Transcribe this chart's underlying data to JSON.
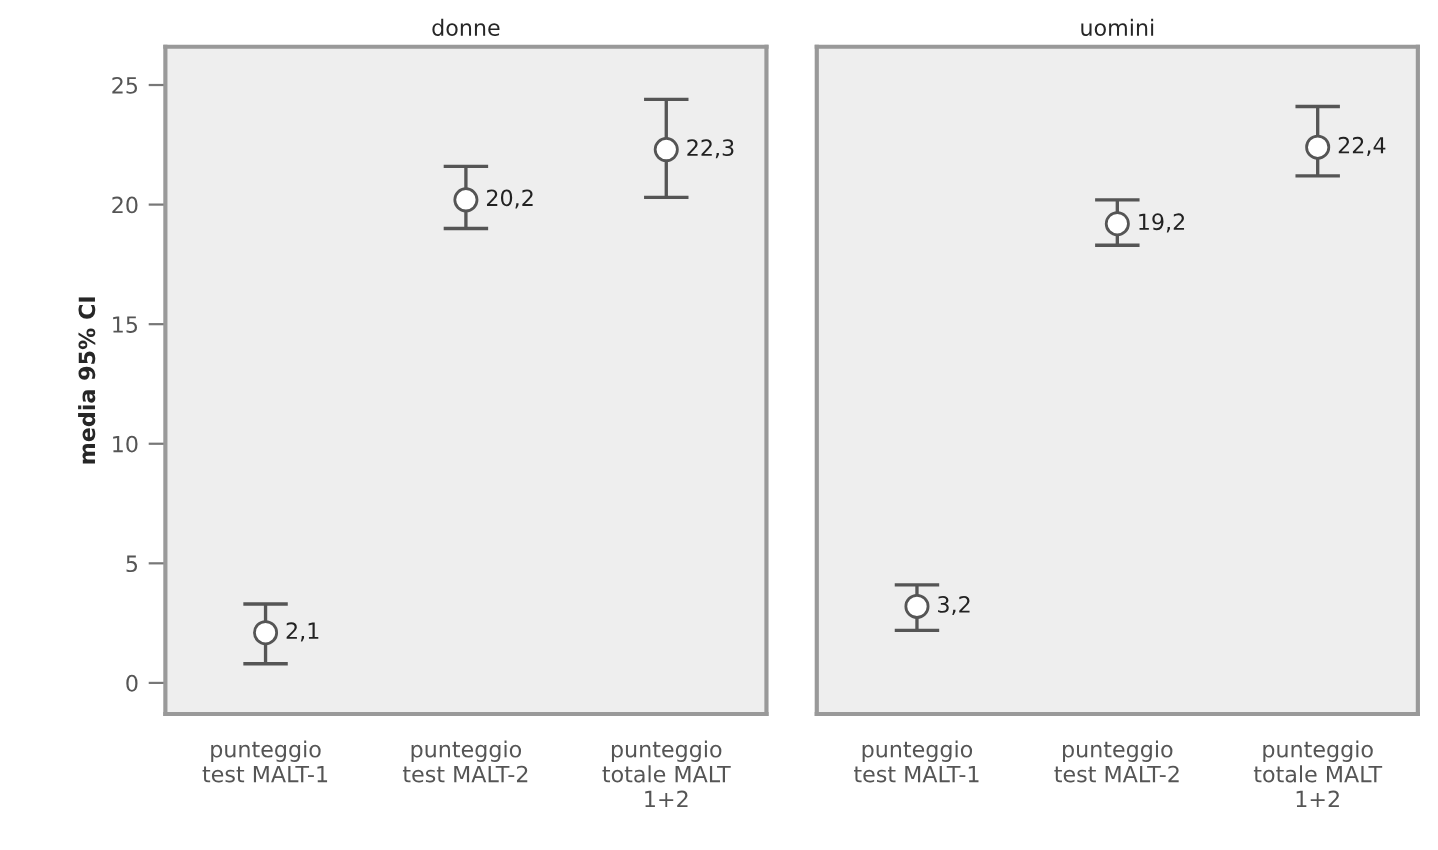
{
  "chart_data": [
    {
      "type": "scatter",
      "title": "donne",
      "ylabel": "media 95% CI",
      "categories": [
        "punteggio test MALT-1",
        "punteggio test MALT-2",
        "punteggio totale MALT 1+2"
      ],
      "series": [
        {
          "color": "#555555",
          "values": [
            2.1,
            20.2,
            22.3
          ],
          "errors": [
            [
              0.8,
              3.3
            ],
            [
              19.0,
              21.6
            ],
            [
              20.3,
              24.4
            ]
          ],
          "value_labels": [
            "2,1",
            "20,2",
            "22,3"
          ]
        }
      ],
      "ylim": [
        -1.3,
        26.6
      ],
      "yticks": [
        0,
        5,
        10,
        15,
        20,
        25
      ],
      "marker": "circle",
      "grid": false,
      "legend": false
    },
    {
      "type": "scatter",
      "title": "uomini",
      "categories": [
        "punteggio test MALT-1",
        "punteggio test MALT-2",
        "punteggio totale MALT 1+2"
      ],
      "series": [
        {
          "color": "#555555",
          "values": [
            3.2,
            19.2,
            22.4
          ],
          "errors": [
            [
              2.2,
              4.1
            ],
            [
              18.3,
              20.2
            ],
            [
              21.2,
              24.1
            ]
          ],
          "value_labels": [
            "3,2",
            "19,2",
            "22,4"
          ]
        }
      ],
      "ylim": [
        -1.3,
        26.6
      ],
      "yticks": [
        0,
        5,
        10,
        15,
        20,
        25
      ],
      "tick_labels": "x",
      "marker": "circle",
      "grid": false,
      "legend": false
    }
  ]
}
